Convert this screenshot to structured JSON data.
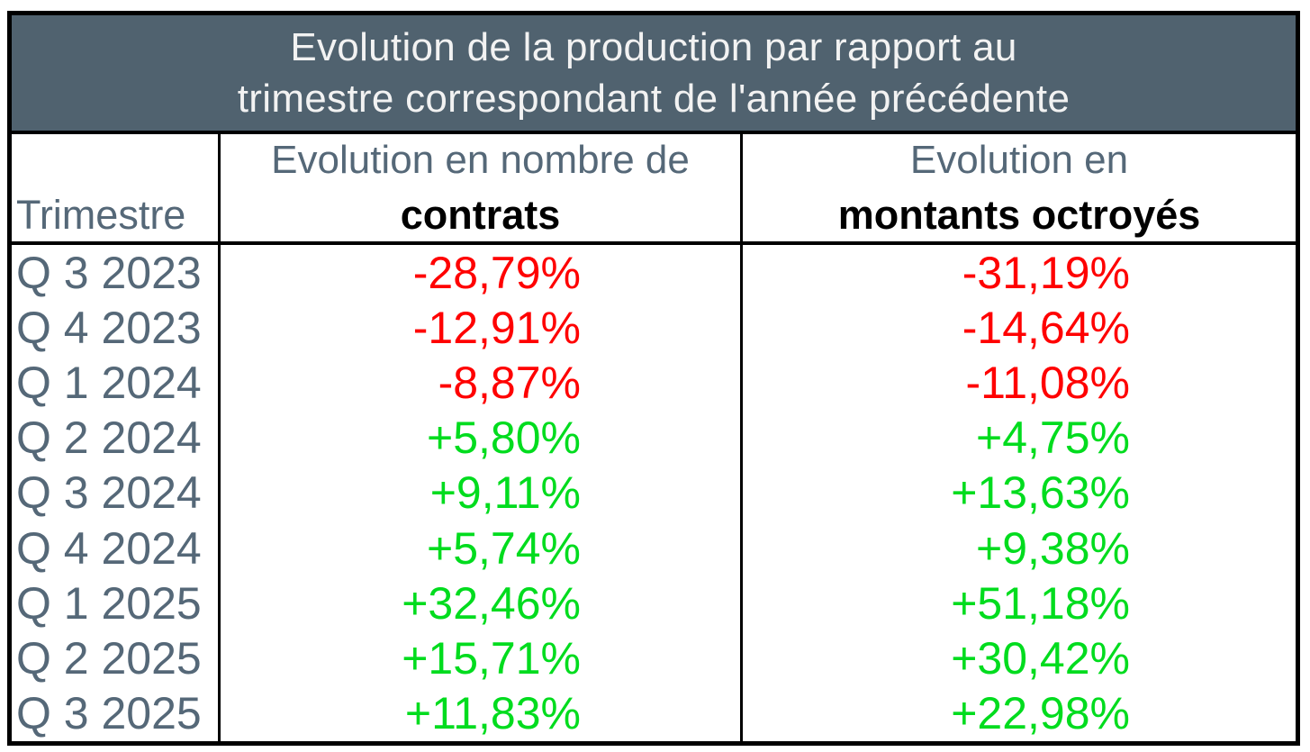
{
  "colors": {
    "slate": "#50626F",
    "titleText": "#F2F2F2",
    "muted": "#556878",
    "neg": "#FF0000",
    "pos": "#00DC1E",
    "border": "#000000"
  },
  "table": {
    "title_line1": "Evolution de la production par rapport au",
    "title_line2": "trimestre correspondant de l'année précédente",
    "headers": {
      "trimestre": "Trimestre",
      "contracts_top": "Evolution en nombre de",
      "contracts_bold": "contrats",
      "amounts_top": "Evolution en",
      "amounts_bold": "montants octroyés"
    },
    "rows": [
      {
        "quarter": "Q 3 2023",
        "contracts": "-28,79%",
        "amounts": "-31,19%",
        "trend": "down"
      },
      {
        "quarter": "Q 4 2023",
        "contracts": "-12,91%",
        "amounts": "-14,64%",
        "trend": "down"
      },
      {
        "quarter": "Q 1 2024",
        "contracts": "-8,87%",
        "amounts": "-11,08%",
        "trend": "down"
      },
      {
        "quarter": "Q 2 2024",
        "contracts": "+5,80%",
        "amounts": "+4,75%",
        "trend": "up"
      },
      {
        "quarter": "Q 3 2024",
        "contracts": "+9,11%",
        "amounts": "+13,63%",
        "trend": "up"
      },
      {
        "quarter": "Q 4 2024",
        "contracts": "+5,74%",
        "amounts": "+9,38%",
        "trend": "up"
      },
      {
        "quarter": "Q 1 2025",
        "contracts": "+32,46%",
        "amounts": "+51,18%",
        "trend": "up"
      },
      {
        "quarter": "Q 2 2025",
        "contracts": "+15,71%",
        "amounts": "+30,42%",
        "trend": "up"
      },
      {
        "quarter": "Q 3 2025",
        "contracts": "+11,83%",
        "amounts": "+22,98%",
        "trend": "up"
      }
    ]
  },
  "chart_data": {
    "type": "table",
    "title": "Evolution de la production par rapport au trimestre correspondant de l'année précédente",
    "categories": [
      "Q 3 2023",
      "Q 4 2023",
      "Q 1 2024",
      "Q 2 2024",
      "Q 3 2024",
      "Q 4 2024",
      "Q 1 2025",
      "Q 2 2025",
      "Q 3 2025"
    ],
    "series": [
      {
        "name": "Evolution en nombre de contrats",
        "values": [
          -28.79,
          -12.91,
          -8.87,
          5.8,
          9.11,
          5.74,
          32.46,
          15.71,
          11.83
        ]
      },
      {
        "name": "Evolution en montants octroyés",
        "values": [
          -31.19,
          -14.64,
          -11.08,
          4.75,
          13.63,
          9.38,
          51.18,
          30.42,
          22.98
        ]
      }
    ],
    "unit": "%",
    "value_format": "signed percentage with French decimal comma",
    "positive_color": "#00DC1E",
    "negative_color": "#FF0000"
  }
}
